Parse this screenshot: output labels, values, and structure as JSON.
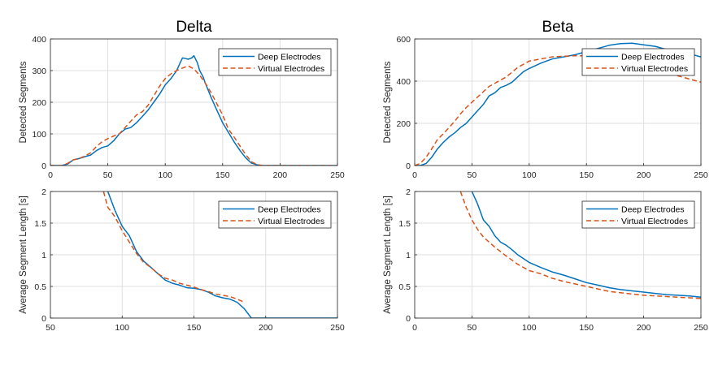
{
  "colors": {
    "deep": "#0072BD",
    "virtual": "#D95319",
    "grid": "#dfdfdf",
    "axis": "#262626"
  },
  "chart_data": [
    {
      "type": "line",
      "title": "Delta",
      "xlabel": "",
      "ylabel": "Detected Segments",
      "xlim": [
        0,
        250
      ],
      "ylim": [
        0,
        400
      ],
      "xticks": [
        0,
        50,
        100,
        150,
        200,
        250
      ],
      "yticks": [
        0,
        100,
        200,
        300,
        400
      ],
      "grid": true,
      "legend_position": "top-right",
      "series": [
        {
          "name": "Deep Electrodes",
          "style": "solid",
          "x": [
            0,
            10,
            15,
            20,
            25,
            30,
            35,
            40,
            45,
            50,
            55,
            60,
            65,
            70,
            75,
            80,
            85,
            90,
            95,
            100,
            105,
            110,
            113,
            115,
            118,
            120,
            123,
            125,
            128,
            130,
            133,
            135,
            140,
            145,
            150,
            155,
            160,
            165,
            170,
            175,
            180,
            185,
            190,
            195,
            200,
            210,
            220,
            230,
            240,
            250
          ],
          "y": [
            0,
            0,
            5,
            18,
            22,
            28,
            33,
            47,
            57,
            62,
            78,
            100,
            115,
            120,
            135,
            155,
            175,
            200,
            225,
            255,
            275,
            300,
            325,
            340,
            338,
            336,
            340,
            347,
            325,
            300,
            280,
            260,
            215,
            175,
            135,
            105,
            75,
            48,
            25,
            8,
            2,
            0,
            0,
            0,
            0,
            0,
            0,
            0,
            0,
            0
          ]
        },
        {
          "name": "Virtual Electrodes",
          "style": "dashed",
          "x": [
            0,
            10,
            15,
            20,
            25,
            30,
            35,
            40,
            45,
            50,
            55,
            60,
            65,
            70,
            75,
            80,
            85,
            90,
            95,
            100,
            105,
            110,
            115,
            120,
            125,
            130,
            135,
            140,
            145,
            150,
            155,
            160,
            165,
            170,
            175,
            180,
            185,
            190,
            195,
            200,
            210,
            220,
            230,
            240,
            250
          ],
          "y": [
            0,
            0,
            7,
            18,
            22,
            30,
            40,
            60,
            75,
            85,
            93,
            100,
            120,
            140,
            160,
            170,
            190,
            220,
            250,
            275,
            290,
            300,
            308,
            315,
            305,
            285,
            260,
            230,
            195,
            160,
            115,
            90,
            62,
            35,
            12,
            3,
            0,
            0,
            0,
            0,
            0,
            0,
            0,
            0,
            0
          ]
        }
      ]
    },
    {
      "type": "line",
      "title": "Beta",
      "xlabel": "",
      "ylabel": "Detected Segments",
      "xlim": [
        0,
        250
      ],
      "ylim": [
        0,
        600
      ],
      "xticks": [
        0,
        50,
        100,
        150,
        200,
        250
      ],
      "yticks": [
        0,
        200,
        400,
        600
      ],
      "grid": true,
      "legend_position": "top-right",
      "series": [
        {
          "name": "Deep Electrodes",
          "style": "solid",
          "x": [
            0,
            5,
            10,
            15,
            20,
            25,
            30,
            35,
            40,
            45,
            50,
            55,
            60,
            65,
            70,
            75,
            80,
            85,
            90,
            95,
            100,
            110,
            120,
            130,
            140,
            150,
            160,
            170,
            180,
            190,
            200,
            210,
            220,
            230,
            240,
            250
          ],
          "y": [
            0,
            0,
            10,
            40,
            80,
            110,
            135,
            155,
            180,
            200,
            230,
            260,
            290,
            330,
            345,
            370,
            380,
            395,
            420,
            445,
            460,
            485,
            505,
            515,
            525,
            540,
            555,
            570,
            578,
            580,
            572,
            565,
            550,
            540,
            530,
            515
          ]
        },
        {
          "name": "Virtual Electrodes",
          "style": "dashed",
          "x": [
            0,
            5,
            10,
            15,
            20,
            25,
            30,
            35,
            40,
            45,
            50,
            55,
            60,
            65,
            70,
            80,
            90,
            100,
            110,
            120,
            130,
            140,
            150,
            160,
            170,
            180,
            190,
            200,
            210,
            220,
            230,
            240,
            250
          ],
          "y": [
            0,
            10,
            40,
            80,
            125,
            150,
            180,
            210,
            245,
            275,
            300,
            325,
            350,
            375,
            390,
            420,
            465,
            495,
            505,
            515,
            518,
            520,
            520,
            520,
            515,
            510,
            500,
            490,
            470,
            445,
            425,
            410,
            395
          ]
        }
      ]
    },
    {
      "type": "line",
      "title": "",
      "xlabel": "",
      "ylabel": "Average Segment Length [s]",
      "xlim": [
        50,
        250
      ],
      "ylim": [
        0,
        2
      ],
      "xticks": [
        50,
        100,
        150,
        200,
        250
      ],
      "yticks": [
        0,
        0.5,
        1,
        1.5,
        2
      ],
      "grid": true,
      "legend_position": "top-right",
      "series": [
        {
          "name": "Deep Electrodes",
          "style": "solid",
          "x": [
            90,
            95,
            100,
            105,
            110,
            115,
            120,
            125,
            130,
            135,
            140,
            145,
            150,
            155,
            160,
            165,
            170,
            175,
            180,
            185,
            190,
            195,
            200,
            250
          ],
          "y": [
            2.0,
            1.7,
            1.45,
            1.3,
            1.05,
            0.9,
            0.8,
            0.7,
            0.6,
            0.55,
            0.52,
            0.48,
            0.47,
            0.45,
            0.41,
            0.35,
            0.32,
            0.3,
            0.25,
            0.15,
            0,
            0,
            0,
            0
          ]
        },
        {
          "name": "Virtual Electrodes",
          "style": "dashed",
          "x": [
            87,
            90,
            95,
            100,
            105,
            110,
            115,
            120,
            125,
            130,
            135,
            140,
            145,
            150,
            155,
            160,
            165,
            170,
            175,
            180,
            185
          ],
          "y": [
            2.0,
            1.75,
            1.6,
            1.38,
            1.2,
            1.02,
            0.88,
            0.8,
            0.7,
            0.63,
            0.6,
            0.55,
            0.52,
            0.49,
            0.45,
            0.42,
            0.38,
            0.36,
            0.34,
            0.3,
            0.25
          ]
        }
      ]
    },
    {
      "type": "line",
      "title": "",
      "xlabel": "",
      "ylabel": "Average Segment Length [s]",
      "xlim": [
        0,
        250
      ],
      "ylim": [
        0,
        2
      ],
      "xticks": [
        0,
        50,
        100,
        150,
        200,
        250
      ],
      "yticks": [
        0,
        0.5,
        1,
        1.5,
        2
      ],
      "grid": true,
      "legend_position": "top-right",
      "series": [
        {
          "name": "Deep Electrodes",
          "style": "solid",
          "x": [
            50,
            55,
            60,
            65,
            70,
            75,
            80,
            85,
            90,
            100,
            110,
            120,
            130,
            140,
            150,
            160,
            170,
            180,
            190,
            200,
            210,
            220,
            230,
            240,
            250
          ],
          "y": [
            2.0,
            1.8,
            1.55,
            1.45,
            1.3,
            1.2,
            1.15,
            1.08,
            1.0,
            0.88,
            0.8,
            0.73,
            0.68,
            0.62,
            0.56,
            0.52,
            0.48,
            0.45,
            0.43,
            0.41,
            0.39,
            0.37,
            0.36,
            0.35,
            0.33
          ]
        },
        {
          "name": "Virtual Electrodes",
          "style": "dashed",
          "x": [
            40,
            45,
            50,
            55,
            60,
            65,
            70,
            80,
            90,
            100,
            110,
            120,
            130,
            140,
            150,
            160,
            170,
            180,
            190,
            200,
            210,
            220,
            230,
            240,
            250
          ],
          "y": [
            2.0,
            1.75,
            1.55,
            1.4,
            1.28,
            1.2,
            1.12,
            0.98,
            0.85,
            0.75,
            0.7,
            0.63,
            0.58,
            0.54,
            0.5,
            0.46,
            0.42,
            0.4,
            0.38,
            0.36,
            0.35,
            0.34,
            0.33,
            0.32,
            0.31
          ]
        }
      ]
    }
  ]
}
